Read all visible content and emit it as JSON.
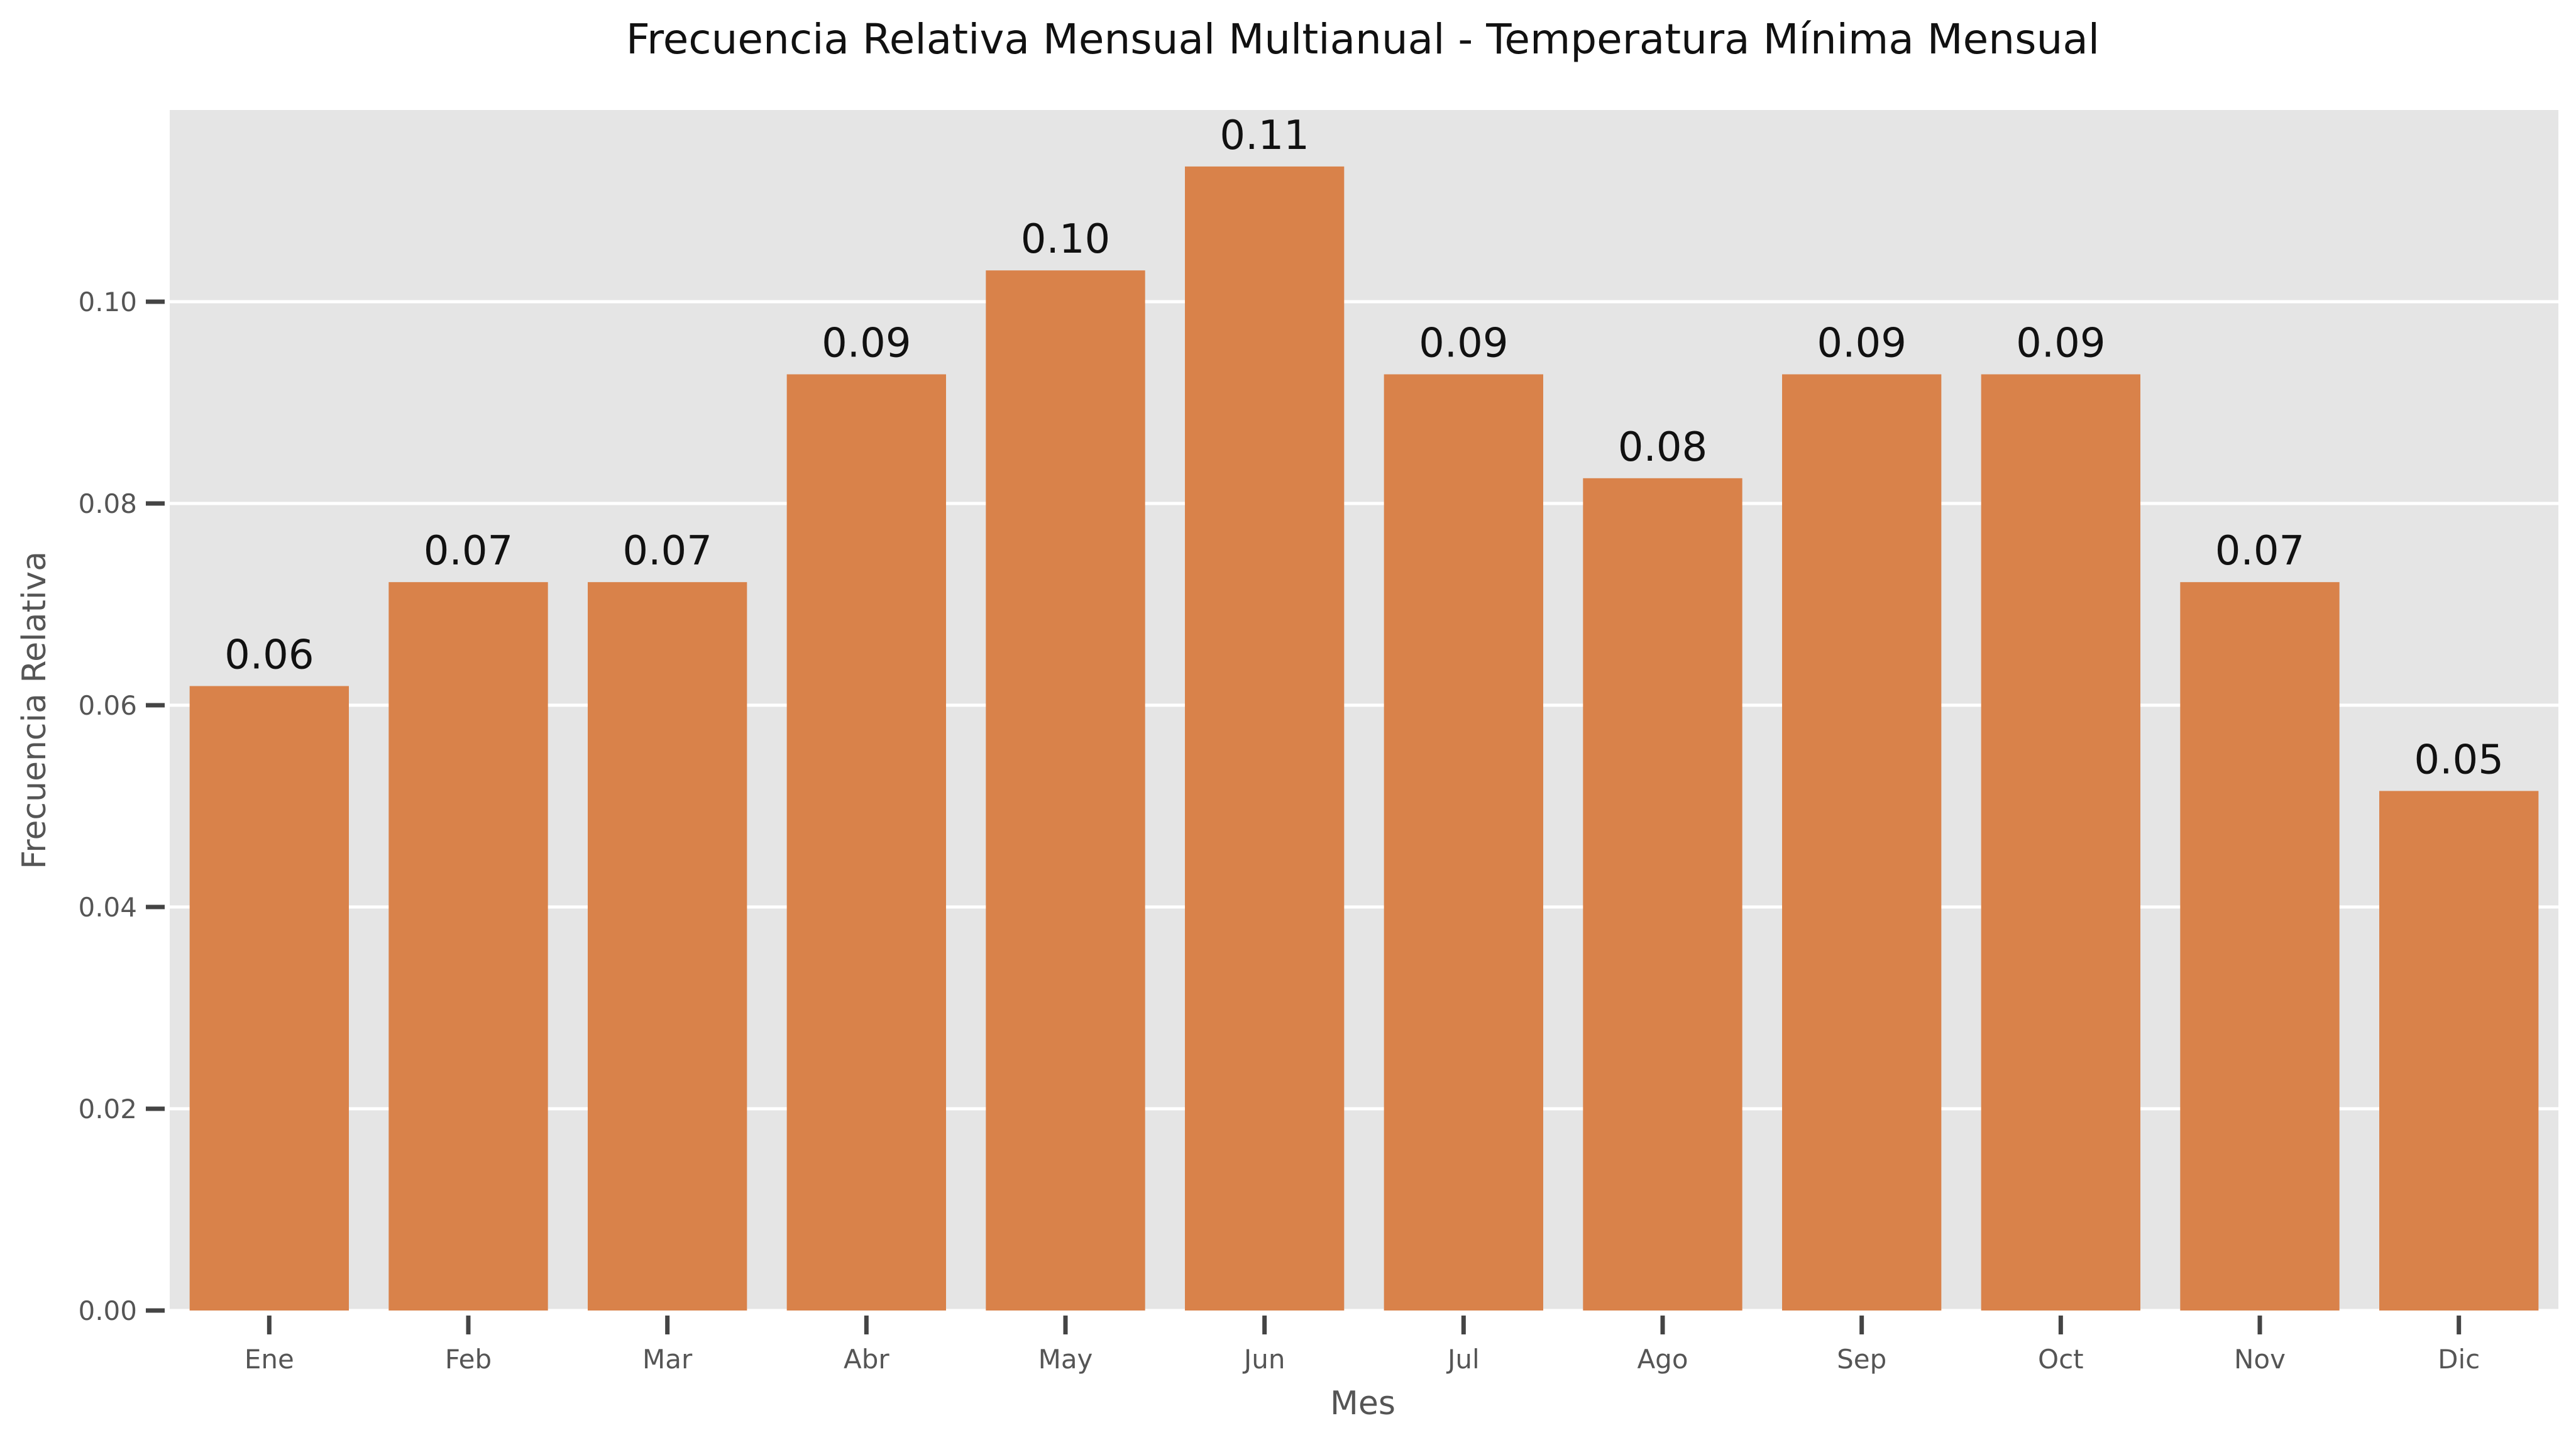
{
  "chart_data": {
    "type": "bar",
    "title": "Frecuencia Relativa Mensual Multianual - Temperatura Mínima Mensual",
    "xlabel": "Mes",
    "ylabel": "Frecuencia Relativa",
    "categories": [
      "Ene",
      "Feb",
      "Mar",
      "Abr",
      "May",
      "Jun",
      "Jul",
      "Ago",
      "Sep",
      "Oct",
      "Nov",
      "Dic"
    ],
    "values": [
      0.0619,
      0.0722,
      0.0722,
      0.0928,
      0.1031,
      0.1134,
      0.0928,
      0.0825,
      0.0928,
      0.0928,
      0.0722,
      0.0515
    ],
    "data_labels": [
      "0.06",
      "0.07",
      "0.07",
      "0.09",
      "0.10",
      "0.11",
      "0.09",
      "0.08",
      "0.09",
      "0.09",
      "0.07",
      "0.05"
    ],
    "yticks": [
      0.0,
      0.02,
      0.04,
      0.06,
      0.08,
      0.1
    ],
    "ytick_labels": [
      "0.00",
      "0.02",
      "0.04",
      "0.06",
      "0.08",
      "0.10"
    ],
    "ylim": [
      0,
      0.119
    ],
    "grid": "horizontal",
    "bar_color": "#d9824a",
    "background_color": "#e5e5e5",
    "grid_color": "#ffffff"
  }
}
